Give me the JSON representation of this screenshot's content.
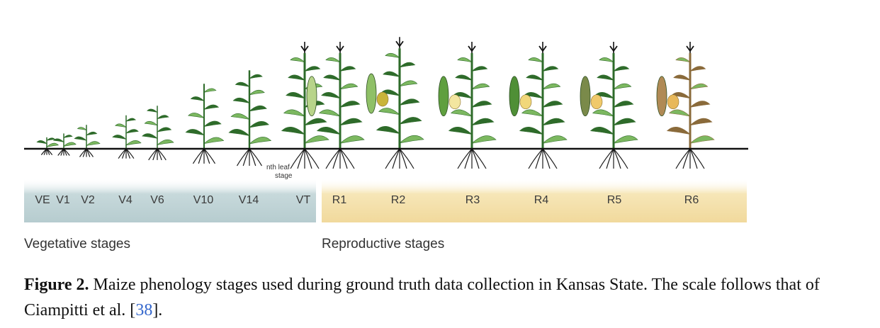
{
  "figure": {
    "note": [
      "nth leaf",
      "stage"
    ],
    "vegetative_group": "Vegetative stages",
    "reproductive_group": "Reproductive stages",
    "stages": [
      {
        "label": "VE",
        "group": "vegetative",
        "size": 0.12,
        "tassel": false,
        "ear": "none"
      },
      {
        "label": "V1",
        "group": "vegetative",
        "size": 0.16,
        "tassel": false,
        "ear": "none"
      },
      {
        "label": "V2",
        "group": "vegetative",
        "size": 0.25,
        "tassel": false,
        "ear": "none"
      },
      {
        "label": "V4",
        "group": "vegetative",
        "size": 0.35,
        "tassel": false,
        "ear": "none"
      },
      {
        "label": "V6",
        "group": "vegetative",
        "size": 0.45,
        "tassel": false,
        "ear": "none"
      },
      {
        "label": "V10",
        "group": "vegetative",
        "size": 0.68,
        "tassel": false,
        "ear": "none"
      },
      {
        "label": "V14",
        "group": "vegetative",
        "size": 0.82,
        "tassel": false,
        "ear": "none"
      },
      {
        "label": "VT",
        "group": "vegetative",
        "size": 1.0,
        "tassel": true,
        "ear": "none"
      },
      {
        "label": "R1",
        "group": "reproductive",
        "size": 1.0,
        "tassel": true,
        "ear": "silk"
      },
      {
        "label": "R2",
        "group": "reproductive",
        "size": 1.05,
        "tassel": true,
        "ear": "blister"
      },
      {
        "label": "R3",
        "group": "reproductive",
        "size": 1.0,
        "tassel": true,
        "ear": "milk"
      },
      {
        "label": "R4",
        "group": "reproductive",
        "size": 1.0,
        "tassel": true,
        "ear": "dough"
      },
      {
        "label": "R5",
        "group": "reproductive",
        "size": 1.0,
        "tassel": true,
        "ear": "dent"
      },
      {
        "label": "R6",
        "group": "reproductive",
        "size": 1.0,
        "tassel": true,
        "ear": "mature"
      }
    ],
    "colors": {
      "vegetative_band": "#bfd3d6",
      "reproductive_band": "#f3dfa7",
      "leaf_dark": "#2e6b2a",
      "leaf_light": "#7cb860",
      "ground": "#111111",
      "mature_leaf": "#8a6a3a"
    }
  },
  "caption": {
    "label": "Figure 2.",
    "text_before": "Maize phenology stages used during ground truth data collection in Kansas State. The scale follows that of Ciampitti et al. [",
    "ref": "38",
    "text_after": "]."
  }
}
